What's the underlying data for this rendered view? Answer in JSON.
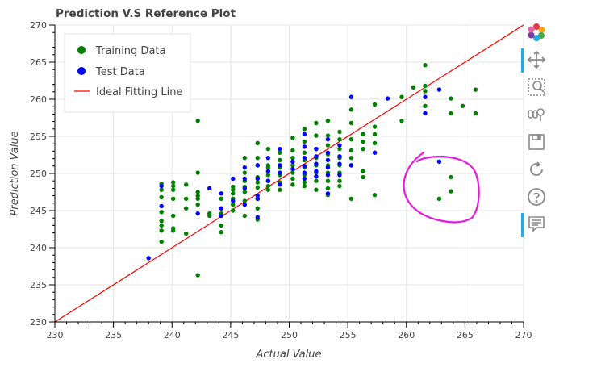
{
  "chart_data": {
    "type": "scatter",
    "title": "Prediction V.S Reference Plot",
    "xlabel": "Actual Value",
    "ylabel": "Prediction Value",
    "xlim": [
      230,
      270
    ],
    "ylim": [
      230,
      270
    ],
    "xticks": [
      "230",
      "235",
      "240",
      "245",
      "250",
      "255",
      "260",
      "265",
      "270"
    ],
    "yticks": [
      "230",
      "235",
      "240",
      "245",
      "250",
      "255",
      "260",
      "265",
      "270"
    ],
    "grid": true,
    "legend_position": "top-left",
    "series": [
      {
        "name": "Training Data",
        "color": "#008000",
        "points": [
          [
            239.1,
            248.6
          ],
          [
            239.1,
            247.8
          ],
          [
            239.1,
            246.8
          ],
          [
            239.1,
            244.8
          ],
          [
            239.1,
            243.6
          ],
          [
            239.1,
            243.0
          ],
          [
            239.1,
            242.3
          ],
          [
            239.1,
            240.8
          ],
          [
            240.1,
            248.8
          ],
          [
            240.1,
            248.3
          ],
          [
            240.1,
            247.8
          ],
          [
            240.1,
            246.6
          ],
          [
            240.1,
            244.3
          ],
          [
            240.1,
            242.6
          ],
          [
            240.1,
            242.3
          ],
          [
            241.2,
            248.5
          ],
          [
            241.2,
            246.6
          ],
          [
            241.2,
            245.3
          ],
          [
            241.2,
            241.9
          ],
          [
            242.2,
            257.1
          ],
          [
            242.2,
            250.1
          ],
          [
            242.2,
            247.5
          ],
          [
            242.2,
            247.0
          ],
          [
            242.2,
            246.6
          ],
          [
            242.2,
            245.8
          ],
          [
            242.2,
            236.3
          ],
          [
            243.2,
            244.6
          ],
          [
            243.2,
            244.3
          ],
          [
            244.2,
            246.6
          ],
          [
            244.2,
            244.6
          ],
          [
            244.2,
            243.0
          ],
          [
            244.2,
            242.1
          ],
          [
            245.2,
            248.2
          ],
          [
            245.2,
            247.8
          ],
          [
            245.2,
            247.3
          ],
          [
            245.2,
            246.6
          ],
          [
            245.2,
            245.8
          ],
          [
            245.2,
            245.0
          ],
          [
            246.2,
            252.1
          ],
          [
            246.2,
            250.1
          ],
          [
            246.2,
            249.0
          ],
          [
            246.2,
            248.2
          ],
          [
            246.2,
            247.5
          ],
          [
            246.2,
            246.3
          ],
          [
            246.2,
            244.3
          ],
          [
            247.3,
            254.1
          ],
          [
            247.3,
            252.1
          ],
          [
            247.3,
            251.1
          ],
          [
            247.3,
            249.5
          ],
          [
            247.3,
            248.8
          ],
          [
            247.3,
            248.1
          ],
          [
            247.3,
            246.6
          ],
          [
            247.3,
            245.3
          ],
          [
            247.3,
            243.8
          ],
          [
            248.2,
            253.3
          ],
          [
            248.2,
            251.1
          ],
          [
            248.2,
            250.8
          ],
          [
            248.2,
            249.8
          ],
          [
            248.2,
            249.0
          ],
          [
            248.2,
            248.3
          ],
          [
            248.2,
            247.8
          ],
          [
            249.2,
            252.8
          ],
          [
            249.2,
            251.8
          ],
          [
            249.2,
            250.8
          ],
          [
            249.2,
            249.8
          ],
          [
            249.2,
            248.8
          ],
          [
            249.2,
            247.8
          ],
          [
            250.3,
            254.8
          ],
          [
            250.3,
            253.1
          ],
          [
            250.3,
            252.1
          ],
          [
            250.3,
            251.1
          ],
          [
            250.3,
            250.1
          ],
          [
            250.3,
            249.3
          ],
          [
            250.3,
            248.5
          ],
          [
            251.3,
            256.0
          ],
          [
            251.3,
            254.3
          ],
          [
            251.3,
            252.8
          ],
          [
            251.3,
            251.8
          ],
          [
            251.3,
            250.8
          ],
          [
            251.3,
            249.8
          ],
          [
            251.3,
            248.8
          ],
          [
            251.3,
            248.3
          ],
          [
            252.3,
            256.8
          ],
          [
            252.3,
            255.1
          ],
          [
            252.3,
            253.3
          ],
          [
            252.3,
            252.1
          ],
          [
            252.3,
            251.1
          ],
          [
            252.3,
            250.1
          ],
          [
            252.3,
            249.0
          ],
          [
            252.3,
            247.8
          ],
          [
            253.3,
            257.1
          ],
          [
            253.3,
            255.1
          ],
          [
            253.3,
            253.8
          ],
          [
            253.3,
            252.6
          ],
          [
            253.3,
            251.1
          ],
          [
            253.3,
            250.1
          ],
          [
            253.3,
            249.0
          ],
          [
            253.3,
            248.0
          ],
          [
            253.3,
            247.1
          ],
          [
            254.3,
            255.6
          ],
          [
            254.3,
            254.6
          ],
          [
            254.3,
            253.3
          ],
          [
            254.3,
            252.1
          ],
          [
            254.3,
            251.1
          ],
          [
            254.3,
            250.1
          ],
          [
            254.3,
            249.0
          ],
          [
            254.3,
            248.3
          ],
          [
            255.3,
            258.6
          ],
          [
            255.3,
            256.8
          ],
          [
            255.3,
            254.6
          ],
          [
            255.3,
            253.1
          ],
          [
            255.3,
            252.1
          ],
          [
            255.3,
            251.1
          ],
          [
            255.3,
            246.6
          ],
          [
            256.3,
            255.3
          ],
          [
            256.3,
            254.3
          ],
          [
            256.3,
            253.3
          ],
          [
            256.3,
            250.3
          ],
          [
            256.3,
            249.5
          ],
          [
            257.3,
            259.3
          ],
          [
            257.3,
            256.3
          ],
          [
            257.3,
            255.3
          ],
          [
            257.3,
            254.1
          ],
          [
            257.3,
            247.1
          ],
          [
            259.6,
            260.3
          ],
          [
            259.6,
            257.1
          ],
          [
            260.6,
            261.6
          ],
          [
            261.6,
            264.6
          ],
          [
            261.6,
            261.8
          ],
          [
            261.6,
            261.1
          ],
          [
            261.6,
            259.1
          ],
          [
            262.8,
            246.6
          ],
          [
            263.8,
            260.1
          ],
          [
            263.8,
            258.1
          ],
          [
            263.8,
            249.5
          ],
          [
            263.8,
            247.6
          ],
          [
            264.8,
            259.1
          ],
          [
            265.9,
            261.3
          ],
          [
            265.9,
            258.1
          ]
        ]
      },
      {
        "name": "Test Data",
        "color": "#0000ff",
        "points": [
          [
            238.0,
            238.6
          ],
          [
            239.1,
            248.3
          ],
          [
            239.1,
            245.6
          ],
          [
            242.2,
            244.6
          ],
          [
            243.2,
            248.0
          ],
          [
            244.2,
            247.3
          ],
          [
            244.2,
            245.3
          ],
          [
            244.2,
            244.3
          ],
          [
            245.2,
            249.3
          ],
          [
            245.2,
            246.3
          ],
          [
            246.2,
            250.8
          ],
          [
            246.2,
            249.3
          ],
          [
            246.2,
            248.0
          ],
          [
            246.2,
            245.8
          ],
          [
            247.3,
            251.1
          ],
          [
            247.3,
            249.3
          ],
          [
            247.3,
            247.0
          ],
          [
            247.3,
            246.6
          ],
          [
            247.3,
            244.1
          ],
          [
            248.2,
            252.1
          ],
          [
            248.2,
            250.3
          ],
          [
            248.2,
            249.0
          ],
          [
            249.2,
            253.3
          ],
          [
            249.2,
            251.1
          ],
          [
            249.2,
            250.1
          ],
          [
            249.2,
            248.5
          ],
          [
            250.3,
            251.6
          ],
          [
            250.3,
            250.6
          ],
          [
            251.3,
            255.3
          ],
          [
            251.3,
            253.6
          ],
          [
            251.3,
            252.1
          ],
          [
            251.3,
            251.0
          ],
          [
            251.3,
            250.1
          ],
          [
            251.3,
            249.3
          ],
          [
            252.3,
            253.3
          ],
          [
            252.3,
            252.3
          ],
          [
            252.3,
            251.3
          ],
          [
            252.3,
            250.3
          ],
          [
            252.3,
            249.6
          ],
          [
            253.3,
            254.6
          ],
          [
            253.3,
            252.8
          ],
          [
            253.3,
            251.8
          ],
          [
            253.3,
            250.8
          ],
          [
            253.3,
            249.8
          ],
          [
            253.3,
            247.3
          ],
          [
            254.3,
            253.8
          ],
          [
            254.3,
            252.3
          ],
          [
            254.3,
            251.3
          ],
          [
            254.3,
            249.8
          ],
          [
            255.3,
            260.3
          ],
          [
            255.3,
            251.1
          ],
          [
            257.3,
            252.8
          ],
          [
            258.4,
            260.1
          ],
          [
            261.6,
            260.3
          ],
          [
            261.6,
            258.1
          ],
          [
            262.8,
            261.3
          ],
          [
            262.8,
            251.6
          ]
        ]
      },
      {
        "name": "Ideal Fitting Line",
        "color": "#ff0000",
        "points": [
          [
            230,
            230
          ],
          [
            270,
            270
          ]
        ]
      }
    ]
  },
  "annotation": {
    "color": "#e619e0"
  },
  "toolbar": {
    "items": [
      {
        "name": "bokeh-logo-icon"
      },
      {
        "name": "pan-icon",
        "active": true
      },
      {
        "name": "box-zoom-icon"
      },
      {
        "name": "wheel-zoom-icon"
      },
      {
        "name": "save-icon"
      },
      {
        "name": "reset-icon"
      },
      {
        "name": "help-icon"
      },
      {
        "name": "hover-icon",
        "active": true
      }
    ]
  }
}
